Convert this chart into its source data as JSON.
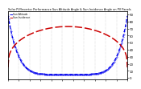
{
  "title": "Solar PV/Inverter Performance Sun Altitude Angle & Sun Incidence Angle on PV Panels",
  "blue_label": "Sun Altitude",
  "red_label": "Sun Incidence",
  "blue_color": "#0000EE",
  "red_color": "#CC0000",
  "background_color": "#ffffff",
  "grid_color": "#999999",
  "right_yticks": [
    0,
    10,
    20,
    30,
    40,
    50,
    60,
    70,
    80,
    90
  ],
  "right_ylim": [
    -2,
    95
  ],
  "left_ylim": [
    -2,
    95
  ],
  "n_points": 200
}
